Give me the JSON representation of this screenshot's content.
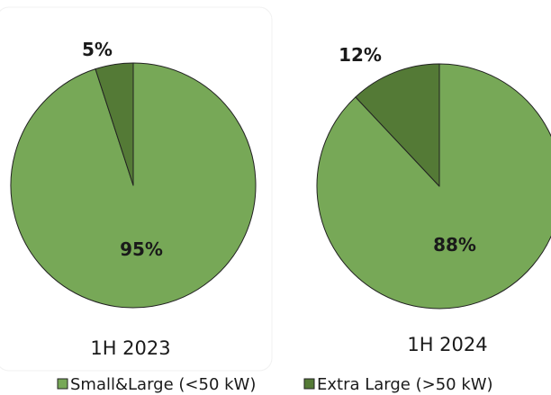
{
  "chart_data": [
    {
      "type": "pie",
      "caption": "1H 2023",
      "categories": [
        "Small&Large (<50 kW)",
        "Extra Large (>50 kW)"
      ],
      "values": [
        95,
        5
      ],
      "labels": [
        "95%",
        "5%"
      ]
    },
    {
      "type": "pie",
      "caption": "1H 2024",
      "categories": [
        "Small&Large (<50 kW)",
        "Extra Large (>50 kW)"
      ],
      "values": [
        88,
        12
      ],
      "labels": [
        "88%",
        "12%"
      ]
    }
  ],
  "legend": {
    "position": "bottom",
    "items": [
      {
        "label": "Small&Large (<50 kW)",
        "color": "#77a857"
      },
      {
        "label": "Extra Large (>50 kW)",
        "color": "#547a36"
      }
    ]
  },
  "colors": {
    "small_large": "#77a857",
    "extra_large": "#547a36",
    "stroke": "#222222"
  }
}
